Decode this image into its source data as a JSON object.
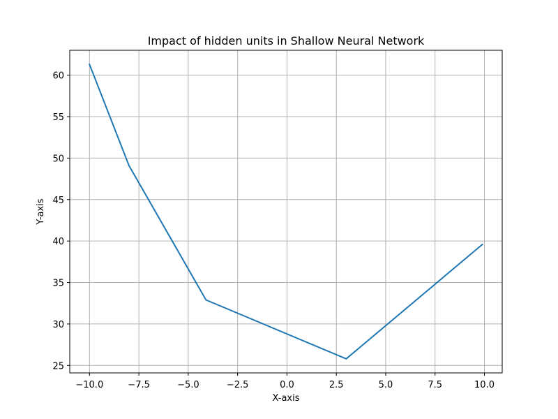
{
  "chart_data": {
    "type": "line",
    "title": "Impact of hidden units in Shallow Neural Network",
    "xlabel": "X-axis",
    "ylabel": "Y-axis",
    "xlim": [
      -11.0,
      10.9
    ],
    "ylim": [
      24.1,
      63.0
    ],
    "xticks": [
      -10.0,
      -7.5,
      -5.0,
      -2.5,
      0.0,
      2.5,
      5.0,
      7.5,
      10.0
    ],
    "xtick_labels": [
      "−10.0",
      "−7.5",
      "−5.0",
      "−2.5",
      "0.0",
      "2.5",
      "5.0",
      "7.5",
      "10.0"
    ],
    "yticks": [
      25,
      30,
      35,
      40,
      45,
      50,
      55,
      60
    ],
    "ytick_labels": [
      "25",
      "30",
      "35",
      "40",
      "45",
      "50",
      "55",
      "60"
    ],
    "grid": true,
    "series": [
      {
        "color": "#1f77b4",
        "x": [
          -10.0,
          -8.0,
          -4.1,
          3.0,
          9.9
        ],
        "y": [
          61.3,
          49.1,
          32.9,
          25.8,
          39.6
        ]
      }
    ]
  }
}
